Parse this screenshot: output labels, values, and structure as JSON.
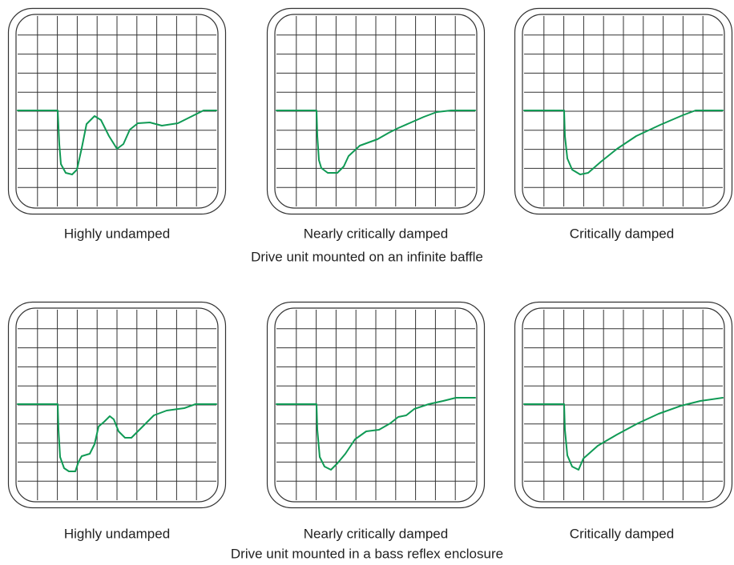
{
  "rows": [
    {
      "panels": [
        {
          "label": "Highly undamped"
        },
        {
          "label": "Nearly critically damped"
        },
        {
          "label": "Critically damped"
        }
      ],
      "caption": "Drive unit mounted on an infinite baffle"
    },
    {
      "panels": [
        {
          "label": "Highly undamped"
        },
        {
          "label": "Nearly critically damped"
        },
        {
          "label": "Critically damped"
        }
      ],
      "caption": "Drive unit mounted in a bass reflex enclosure"
    }
  ]
}
